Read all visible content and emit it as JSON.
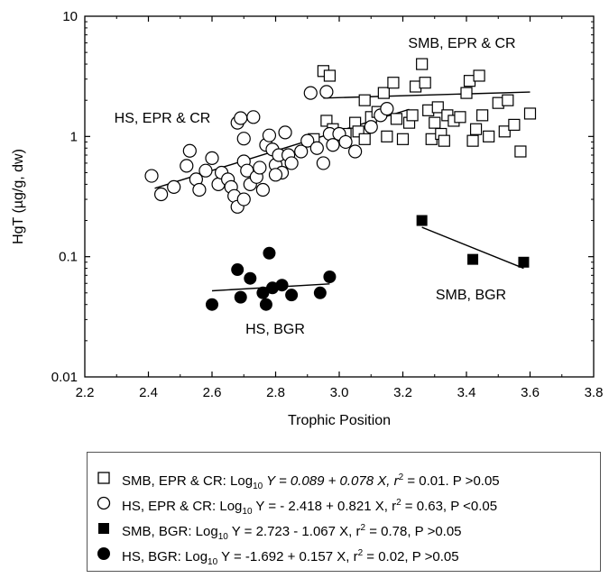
{
  "chart_data": {
    "type": "scatter",
    "xlabel": "Trophic Position",
    "ylabel": "HgT (µg/g, dw)",
    "y_scale": "log",
    "xlim": [
      2.2,
      3.8
    ],
    "ylim": [
      0.01,
      10
    ],
    "x_ticks": [
      "2.2",
      "2.4",
      "2.6",
      "2.8",
      "3.0",
      "3.2",
      "3.4",
      "3.6",
      "3.8"
    ],
    "y_ticks": [
      "0.01",
      "0.1",
      "1",
      "10"
    ],
    "series": [
      {
        "name": "SMB, EPR & CR",
        "marker": "open-square",
        "fit": {
          "intercept": 0.089,
          "slope": 0.078,
          "x_range": [
            2.95,
            3.6
          ]
        },
        "points": [
          [
            2.95,
            3.5
          ],
          [
            2.97,
            3.2
          ],
          [
            2.92,
            0.95
          ],
          [
            2.96,
            1.35
          ],
          [
            2.98,
            1.15
          ],
          [
            3.0,
            0.95
          ],
          [
            3.02,
            1.05
          ],
          [
            3.05,
            1.3
          ],
          [
            3.06,
            1.1
          ],
          [
            3.08,
            2.0
          ],
          [
            3.1,
            1.45
          ],
          [
            3.12,
            1.6
          ],
          [
            3.14,
            2.3
          ],
          [
            3.15,
            1.0
          ],
          [
            3.17,
            2.8
          ],
          [
            3.18,
            1.4
          ],
          [
            3.2,
            0.95
          ],
          [
            3.22,
            1.3
          ],
          [
            3.24,
            2.6
          ],
          [
            3.26,
            4.0
          ],
          [
            3.27,
            2.8
          ],
          [
            3.28,
            1.65
          ],
          [
            3.29,
            0.95
          ],
          [
            3.3,
            1.3
          ],
          [
            3.31,
            1.75
          ],
          [
            3.32,
            1.05
          ],
          [
            3.34,
            1.5
          ],
          [
            3.36,
            1.35
          ],
          [
            3.38,
            1.45
          ],
          [
            3.4,
            2.3
          ],
          [
            3.41,
            2.9
          ],
          [
            3.42,
            0.92
          ],
          [
            3.43,
            1.15
          ],
          [
            3.44,
            3.2
          ],
          [
            3.45,
            1.5
          ],
          [
            3.47,
            1.0
          ],
          [
            3.5,
            1.9
          ],
          [
            3.52,
            1.1
          ],
          [
            3.53,
            2.0
          ],
          [
            3.55,
            1.25
          ],
          [
            3.57,
            0.75
          ],
          [
            3.6,
            1.55
          ],
          [
            3.08,
            0.95
          ],
          [
            3.23,
            1.5
          ],
          [
            3.33,
            0.92
          ]
        ]
      },
      {
        "name": "HS, EPR & CR",
        "marker": "open-circle",
        "fit": {
          "intercept": -2.418,
          "slope": 0.821,
          "x_range": [
            2.42,
            3.22
          ]
        },
        "points": [
          [
            2.41,
            0.47
          ],
          [
            2.44,
            0.33
          ],
          [
            2.48,
            0.38
          ],
          [
            2.52,
            0.57
          ],
          [
            2.53,
            0.76
          ],
          [
            2.55,
            0.44
          ],
          [
            2.56,
            0.36
          ],
          [
            2.58,
            0.52
          ],
          [
            2.6,
            0.66
          ],
          [
            2.62,
            0.4
          ],
          [
            2.63,
            0.5
          ],
          [
            2.65,
            0.44
          ],
          [
            2.66,
            0.38
          ],
          [
            2.67,
            0.32
          ],
          [
            2.68,
            0.26
          ],
          [
            2.68,
            1.3
          ],
          [
            2.69,
            1.42
          ],
          [
            2.7,
            0.96
          ],
          [
            2.7,
            0.62
          ],
          [
            2.71,
            0.52
          ],
          [
            2.72,
            0.4
          ],
          [
            2.73,
            1.45
          ],
          [
            2.74,
            0.46
          ],
          [
            2.75,
            0.55
          ],
          [
            2.76,
            0.36
          ],
          [
            2.77,
            0.85
          ],
          [
            2.78,
            1.02
          ],
          [
            2.79,
            0.78
          ],
          [
            2.8,
            0.58
          ],
          [
            2.81,
            0.7
          ],
          [
            2.82,
            0.5
          ],
          [
            2.83,
            1.08
          ],
          [
            2.84,
            0.7
          ],
          [
            2.85,
            0.6
          ],
          [
            2.88,
            0.75
          ],
          [
            2.9,
            0.92
          ],
          [
            2.91,
            2.3
          ],
          [
            2.93,
            0.8
          ],
          [
            2.95,
            0.6
          ],
          [
            2.96,
            2.35
          ],
          [
            2.97,
            1.05
          ],
          [
            2.98,
            0.85
          ],
          [
            3.0,
            1.05
          ],
          [
            3.02,
            0.9
          ],
          [
            3.05,
            0.75
          ],
          [
            3.1,
            1.2
          ],
          [
            3.13,
            1.5
          ],
          [
            3.15,
            1.7
          ],
          [
            2.7,
            0.3
          ],
          [
            2.8,
            0.48
          ]
        ]
      },
      {
        "name": "SMB, BGR",
        "marker": "filled-square",
        "fit": {
          "intercept": 2.723,
          "slope": -1.067,
          "x_range": [
            3.26,
            3.58
          ]
        },
        "points": [
          [
            3.26,
            0.2
          ],
          [
            3.42,
            0.095
          ],
          [
            3.58,
            0.09
          ]
        ]
      },
      {
        "name": "HS, BGR",
        "marker": "filled-circle",
        "fit": {
          "intercept": -1.692,
          "slope": 0.157,
          "x_range": [
            2.6,
            2.97
          ]
        },
        "points": [
          [
            2.6,
            0.04
          ],
          [
            2.68,
            0.078
          ],
          [
            2.69,
            0.046
          ],
          [
            2.72,
            0.066
          ],
          [
            2.76,
            0.05
          ],
          [
            2.77,
            0.04
          ],
          [
            2.78,
            0.107
          ],
          [
            2.79,
            0.055
          ],
          [
            2.82,
            0.058
          ],
          [
            2.85,
            0.048
          ],
          [
            2.94,
            0.05
          ],
          [
            2.97,
            0.068
          ]
        ]
      }
    ],
    "annotations": [
      {
        "text": "SMB, EPR & CR",
        "series": 0
      },
      {
        "text": "HS, EPR & CR",
        "series": 1
      },
      {
        "text": "SMB, BGR",
        "series": 2
      },
      {
        "text": "HS, BGR",
        "series": 3
      }
    ],
    "legend": [
      {
        "marker": "open-square",
        "text": "SMB, EPR & CR: Log10 Y = 0.089 + 0.078 X, r2 = 0.01. P >0.05",
        "parts": {
          "a": "SMB, EPR & CR: Log",
          "sub": "10",
          "b": " Y = 0.089 + 0.078 X, r",
          "sup": "2",
          "c": " = 0.01. P >0.05"
        }
      },
      {
        "marker": "open-circle",
        "text": "HS, EPR & CR: Log10 Y = - 2.418 + 0.821 X, r2 = 0.63, P <0.05",
        "parts": {
          "a": "HS, EPR & CR: Log",
          "sub": "10",
          "b": " Y = - 2.418 + 0.821 X, r",
          "sup": "2",
          "c": " = 0.63, P <0.05"
        }
      },
      {
        "marker": "filled-square",
        "text": "SMB, BGR: Log10 Y = 2.723 - 1.067 X, r2 = 0.78, P >0.05",
        "parts": {
          "a": "SMB, BGR: Log",
          "sub": "10",
          "b": " Y = 2.723 - 1.067 X, r",
          "sup": "2",
          "c": " = 0.78, P >0.05"
        }
      },
      {
        "marker": "filled-circle",
        "text": "HS, BGR: Log10 Y = -1.692 + 0.157 X, r2 = 0.02, P >0.05",
        "parts": {
          "a": "HS, BGR: Log",
          "sub": "10",
          "b": " Y = -1.692 + 0.157 X,  r",
          "sup": "2",
          "c": " = 0.02, P >0.05"
        }
      }
    ],
    "grid": false,
    "legend_placement": "bottom"
  }
}
